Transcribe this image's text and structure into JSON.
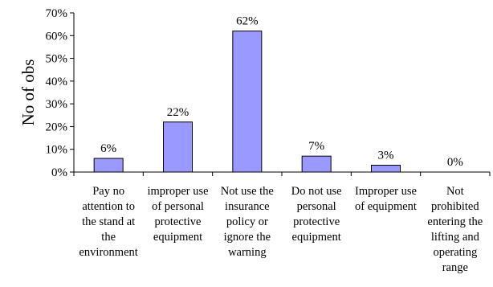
{
  "chart_data": {
    "type": "bar",
    "categories": [
      "Pay no attention to the stand at the environment",
      "improper use of personal protective equipment",
      "Not use the insurance policy or ignore the warning",
      "Do not use personal protective equipment",
      "Improper use of equipment",
      "Not prohibited entering the lifting and operating range"
    ],
    "category_lines": [
      [
        "Pay no",
        "attention to",
        "the stand at",
        "the",
        "environment"
      ],
      [
        "improper use",
        "of personal",
        "protective",
        "equipment"
      ],
      [
        "Not use the",
        "insurance",
        "policy or",
        "ignore the",
        "warning"
      ],
      [
        "Do not use",
        "personal",
        "protective",
        "equipment"
      ],
      [
        "Improper use",
        "of equipment"
      ],
      [
        "Not",
        "prohibited",
        "entering the",
        "lifting and",
        "operating",
        "range"
      ]
    ],
    "values": [
      6,
      22,
      62,
      7,
      3,
      0
    ],
    "data_labels": [
      "6%",
      "22%",
      "62%",
      "7%",
      "3%",
      "0%"
    ],
    "ylabel": "No of obs",
    "ylim": [
      0,
      70
    ],
    "yticks": [
      "0%",
      "10%",
      "20%",
      "30%",
      "40%",
      "50%",
      "60%",
      "70%"
    ],
    "grid": false,
    "legend": "none",
    "bar_color": "#9999ff",
    "bar_edge_color": "#000000"
  }
}
